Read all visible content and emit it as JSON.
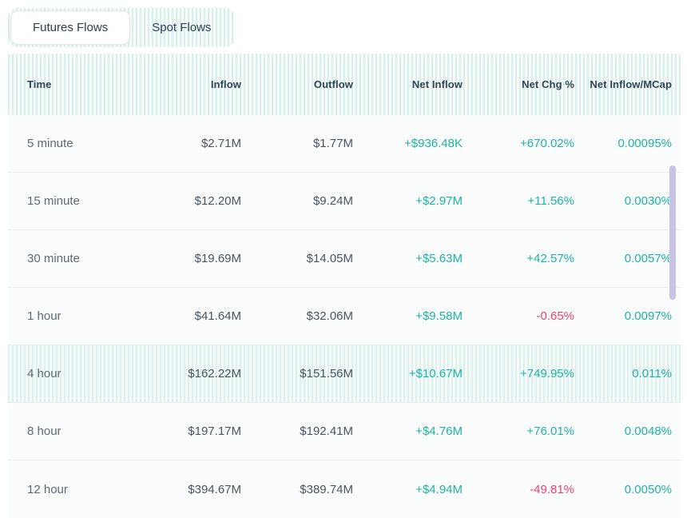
{
  "tabs": [
    {
      "label": "Futures Flows",
      "active": true
    },
    {
      "label": "Spot Flows",
      "active": false
    }
  ],
  "table": {
    "columns": [
      "Time",
      "Inflow",
      "Outflow",
      "Net Inflow",
      "Net Chg %",
      "Net Inflow/MCap"
    ],
    "rows": [
      {
        "time": "5 minute",
        "inflow": "$2.71M",
        "outflow": "$1.77M",
        "net_inflow": "+$936.48K",
        "net_chg": "+670.02%",
        "net_chg_trend": "up",
        "net_inflow_mcap": "0.00095%",
        "highlighted": false
      },
      {
        "time": "15 minute",
        "inflow": "$12.20M",
        "outflow": "$9.24M",
        "net_inflow": "+$2.97M",
        "net_chg": "+11.56%",
        "net_chg_trend": "up",
        "net_inflow_mcap": "0.0030%",
        "highlighted": false
      },
      {
        "time": "30 minute",
        "inflow": "$19.69M",
        "outflow": "$14.05M",
        "net_inflow": "+$5.63M",
        "net_chg": "+42.57%",
        "net_chg_trend": "up",
        "net_inflow_mcap": "0.0057%",
        "highlighted": false
      },
      {
        "time": "1 hour",
        "inflow": "$41.64M",
        "outflow": "$32.06M",
        "net_inflow": "+$9.58M",
        "net_chg": "-0.65%",
        "net_chg_trend": "down",
        "net_inflow_mcap": "0.0097%",
        "highlighted": false
      },
      {
        "time": "4 hour",
        "inflow": "$162.22M",
        "outflow": "$151.56M",
        "net_inflow": "+$10.67M",
        "net_chg": "+749.95%",
        "net_chg_trend": "up",
        "net_inflow_mcap": "0.011%",
        "highlighted": true
      },
      {
        "time": "8 hour",
        "inflow": "$197.17M",
        "outflow": "$192.41M",
        "net_inflow": "+$4.76M",
        "net_chg": "+76.01%",
        "net_chg_trend": "up",
        "net_inflow_mcap": "0.0048%",
        "highlighted": false
      },
      {
        "time": "12 hour",
        "inflow": "$394.67M",
        "outflow": "$389.74M",
        "net_inflow": "+$4.94M",
        "net_chg": "-49.81%",
        "net_chg_trend": "down",
        "net_inflow_mcap": "0.0050%",
        "highlighted": false
      }
    ]
  },
  "colors": {
    "positive": "#1fb2a4",
    "negative": "#ee3f6e",
    "header_text": "#334356",
    "stripe_mint": "#d9efeb",
    "scrollbar_thumb": "#c7c3e2"
  }
}
